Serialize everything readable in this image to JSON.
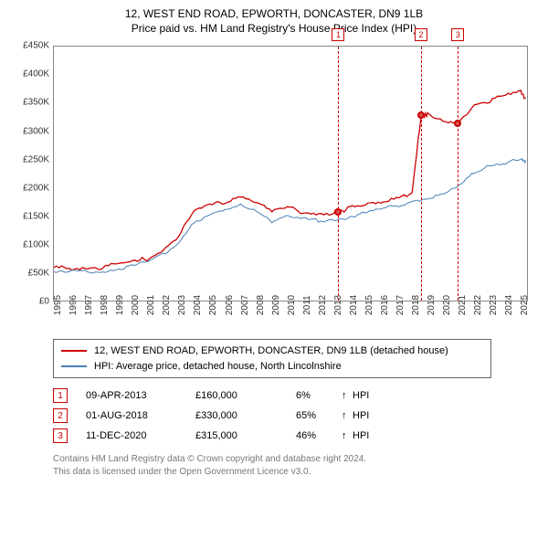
{
  "title": {
    "line1": "12, WEST END ROAD, EPWORTH, DONCASTER, DN9 1LB",
    "line2": "Price paid vs. HM Land Registry's House Price Index (HPI)"
  },
  "chart": {
    "type": "line",
    "background_color": "#ffffff",
    "border_color": "#888888",
    "ylim": [
      0,
      450000
    ],
    "ytick_step": 50000,
    "yticks": [
      "£0",
      "£50K",
      "£100K",
      "£150K",
      "£200K",
      "£250K",
      "£300K",
      "£350K",
      "£400K",
      "£450K"
    ],
    "xlim": [
      1995,
      2025.5
    ],
    "xticks": [
      1995,
      1996,
      1997,
      1998,
      1999,
      2000,
      2001,
      2002,
      2003,
      2004,
      2005,
      2006,
      2007,
      2008,
      2009,
      2010,
      2011,
      2012,
      2013,
      2014,
      2015,
      2016,
      2017,
      2018,
      2019,
      2020,
      2021,
      2022,
      2023,
      2024,
      2025
    ],
    "label_fontsize": 10,
    "series": [
      {
        "name": "price_paid",
        "color": "#cc0000",
        "line_width": 1.3,
        "x": [
          1995,
          1996,
          1997,
          1998,
          1999,
          2000,
          2001,
          2002,
          2003,
          2004,
          2005,
          2006,
          2007,
          2008,
          2009,
          2010,
          2011,
          2012,
          2013,
          2013.27,
          2014,
          2015,
          2016,
          2017,
          2018,
          2018.58,
          2019,
          2020,
          2020.95,
          2021,
          2022,
          2023,
          2024,
          2025,
          2025.3
        ],
        "y": [
          62000,
          63000,
          64000,
          63000,
          68000,
          72000,
          80000,
          95000,
          120000,
          160000,
          172000,
          180000,
          190000,
          180000,
          160000,
          168000,
          162000,
          160000,
          160000,
          160000,
          168000,
          172000,
          180000,
          188000,
          195000,
          330000,
          332000,
          318000,
          315000,
          320000,
          352000,
          358000,
          365000,
          372000,
          360000
        ]
      },
      {
        "name": "hpi",
        "color": "#4a7fb5",
        "line_width": 1,
        "x": [
          1995,
          1996,
          1997,
          1998,
          1999,
          2000,
          2001,
          2002,
          2003,
          2004,
          2005,
          2006,
          2007,
          2008,
          2009,
          2010,
          2011,
          2012,
          2013,
          2014,
          2015,
          2016,
          2017,
          2018,
          2019,
          2020,
          2021,
          2022,
          2023,
          2024,
          2025,
          2025.3
        ],
        "y": [
          54000,
          55000,
          56000,
          56000,
          60000,
          65000,
          72000,
          85000,
          108000,
          145000,
          155000,
          162000,
          172000,
          165000,
          145000,
          152000,
          148000,
          146000,
          148000,
          153000,
          158000,
          165000,
          172000,
          180000,
          185000,
          192000,
          205000,
          230000,
          245000,
          248000,
          252000,
          250000
        ]
      }
    ],
    "markers": [
      {
        "n": "1",
        "x": 2013.27,
        "y": 160000
      },
      {
        "n": "2",
        "x": 2018.58,
        "y": 330000
      },
      {
        "n": "3",
        "x": 2020.95,
        "y": 315000
      }
    ]
  },
  "legend": {
    "items": [
      {
        "color": "#cc0000",
        "label": "12, WEST END ROAD, EPWORTH, DONCASTER, DN9 1LB (detached house)"
      },
      {
        "color": "#4a7fb5",
        "label": "HPI: Average price, detached house, North Lincolnshire"
      }
    ]
  },
  "sales": [
    {
      "n": "1",
      "date": "09-APR-2013",
      "price": "£160,000",
      "pct": "6%",
      "arrow": "↑",
      "suffix": "HPI"
    },
    {
      "n": "2",
      "date": "01-AUG-2018",
      "price": "£330,000",
      "pct": "65%",
      "arrow": "↑",
      "suffix": "HPI"
    },
    {
      "n": "3",
      "date": "11-DEC-2020",
      "price": "£315,000",
      "pct": "46%",
      "arrow": "↑",
      "suffix": "HPI"
    }
  ],
  "footer": {
    "line1": "Contains HM Land Registry data © Crown copyright and database right 2024.",
    "line2": "This data is licensed under the Open Government Licence v3.0."
  },
  "marker_style": {
    "border_color": "#cc0000",
    "text_color": "#cc0000"
  }
}
